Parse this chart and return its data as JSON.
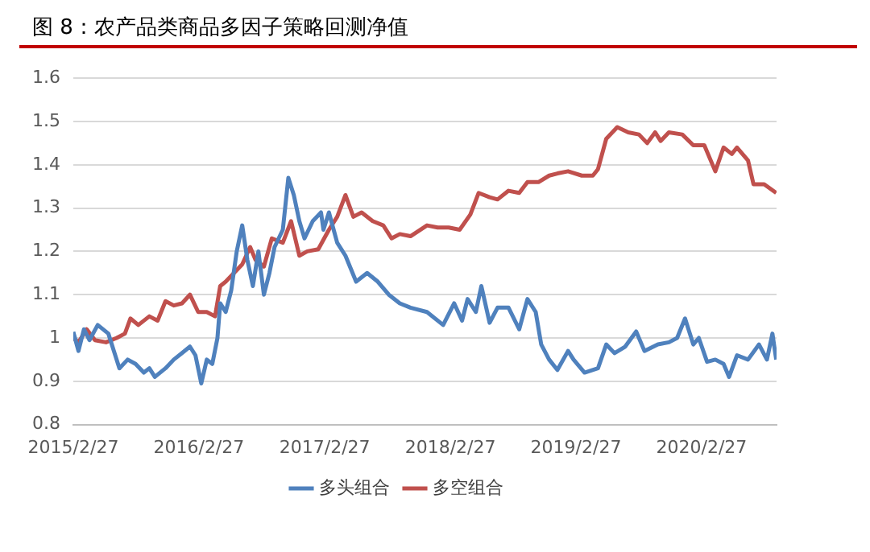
{
  "chart_data": {
    "type": "line",
    "title": "图 8：农产品类商品多因子策略回测净值",
    "xlim": [
      "2015-02-27",
      "2020-10-02"
    ],
    "xticks": [
      {
        "value": "2015-02-27",
        "label": "2015/2/27"
      },
      {
        "value": "2016-02-27",
        "label": "2016/2/27"
      },
      {
        "value": "2017-02-27",
        "label": "2017/2/27"
      },
      {
        "value": "2018-02-27",
        "label": "2018/2/27"
      },
      {
        "value": "2019-02-27",
        "label": "2019/2/27"
      },
      {
        "value": "2020-02-27",
        "label": "2020/2/27"
      }
    ],
    "ylim": [
      0.8,
      1.6
    ],
    "yticks": [
      0.8,
      0.9,
      1,
      1.1,
      1.2,
      1.3,
      1.4,
      1.5,
      1.6
    ],
    "grid": "y",
    "legend": "bottom",
    "marker": "none",
    "line_style": "solid",
    "series": [
      {
        "name": "多头组合",
        "color": "#4f81bd",
        "x": [
          "2015-02-27",
          "2015-03-14",
          "2015-03-30",
          "2015-04-15",
          "2015-05-09",
          "2015-06-09",
          "2015-06-25",
          "2015-07-11",
          "2015-08-04",
          "2015-08-27",
          "2015-09-20",
          "2015-10-06",
          "2015-10-22",
          "2015-11-22",
          "2015-12-16",
          "2016-01-09",
          "2016-02-01",
          "2016-02-17",
          "2016-03-05",
          "2016-03-21",
          "2016-04-06",
          "2016-04-21",
          "2016-04-29",
          "2016-05-15",
          "2016-05-31",
          "2016-06-16",
          "2016-07-02",
          "2016-07-17",
          "2016-08-02",
          "2016-08-18",
          "2016-09-03",
          "2016-09-19",
          "2016-10-04",
          "2016-10-28",
          "2016-11-13",
          "2016-11-29",
          "2016-12-15",
          "2016-12-30",
          "2017-01-23",
          "2017-02-16",
          "2017-02-23",
          "2017-03-11",
          "2017-04-04",
          "2017-04-28",
          "2017-05-29",
          "2017-06-30",
          "2017-07-31",
          "2017-09-01",
          "2017-10-03",
          "2017-11-03",
          "2017-12-21",
          "2018-02-06",
          "2018-03-10",
          "2018-04-02",
          "2018-04-18",
          "2018-05-12",
          "2018-05-28",
          "2018-06-21",
          "2018-07-14",
          "2018-08-15",
          "2018-09-15",
          "2018-10-09",
          "2018-11-02",
          "2018-11-18",
          "2018-12-11",
          "2019-01-04",
          "2019-02-04",
          "2019-02-20",
          "2019-03-24",
          "2019-05-02",
          "2019-05-26",
          "2019-06-19",
          "2019-07-20",
          "2019-08-21",
          "2019-09-14",
          "2019-10-23",
          "2019-11-24",
          "2019-12-18",
          "2020-01-10",
          "2020-02-03",
          "2020-02-19",
          "2020-03-14",
          "2020-04-07",
          "2020-05-01",
          "2020-05-17",
          "2020-06-09",
          "2020-07-11",
          "2020-08-12",
          "2020-09-04",
          "2020-09-20",
          "2020-10-01"
        ],
        "values": [
          1.014,
          0.97,
          1.02,
          0.995,
          1.03,
          1.01,
          0.97,
          0.93,
          0.95,
          0.94,
          0.92,
          0.93,
          0.91,
          0.93,
          0.95,
          0.965,
          0.98,
          0.96,
          0.895,
          0.95,
          0.94,
          1.0,
          1.08,
          1.06,
          1.11,
          1.2,
          1.26,
          1.18,
          1.12,
          1.2,
          1.1,
          1.15,
          1.21,
          1.25,
          1.37,
          1.33,
          1.27,
          1.23,
          1.27,
          1.29,
          1.25,
          1.29,
          1.22,
          1.19,
          1.13,
          1.15,
          1.13,
          1.1,
          1.08,
          1.07,
          1.06,
          1.03,
          1.08,
          1.04,
          1.09,
          1.06,
          1.12,
          1.035,
          1.07,
          1.07,
          1.02,
          1.09,
          1.06,
          0.985,
          0.95,
          0.926,
          0.97,
          0.95,
          0.92,
          0.93,
          0.985,
          0.965,
          0.98,
          1.015,
          0.97,
          0.985,
          0.99,
          1.0,
          1.045,
          0.985,
          1.0,
          0.945,
          0.95,
          0.94,
          0.91,
          0.96,
          0.95,
          0.985,
          0.95,
          1.01,
          0.95
        ]
      },
      {
        "name": "多空组合",
        "color": "#c0504d",
        "x": [
          "2015-02-27",
          "2015-03-14",
          "2015-04-07",
          "2015-05-01",
          "2015-06-02",
          "2015-07-03",
          "2015-07-27",
          "2015-08-12",
          "2015-09-04",
          "2015-10-06",
          "2015-10-30",
          "2015-11-22",
          "2015-12-16",
          "2016-01-09",
          "2016-02-01",
          "2016-02-25",
          "2016-03-21",
          "2016-04-14",
          "2016-04-29",
          "2016-05-15",
          "2016-06-08",
          "2016-07-02",
          "2016-07-25",
          "2016-08-10",
          "2016-09-03",
          "2016-09-26",
          "2016-10-28",
          "2016-11-21",
          "2016-12-15",
          "2017-01-07",
          "2017-02-08",
          "2017-03-11",
          "2017-04-04",
          "2017-04-28",
          "2017-05-21",
          "2017-06-14",
          "2017-07-16",
          "2017-08-16",
          "2017-09-09",
          "2017-10-03",
          "2017-11-03",
          "2017-12-21",
          "2018-01-21",
          "2018-02-22",
          "2018-03-26",
          "2018-04-26",
          "2018-05-20",
          "2018-06-21",
          "2018-07-14",
          "2018-08-15",
          "2018-09-15",
          "2018-10-09",
          "2018-11-10",
          "2018-12-11",
          "2019-01-04",
          "2019-02-04",
          "2019-03-16",
          "2019-04-17",
          "2019-05-02",
          "2019-05-26",
          "2019-06-27",
          "2019-07-29",
          "2019-08-29",
          "2019-09-22",
          "2019-10-15",
          "2019-10-31",
          "2019-11-24",
          "2020-01-02",
          "2020-02-03",
          "2020-03-06",
          "2020-04-07",
          "2020-05-01",
          "2020-05-25",
          "2020-06-09",
          "2020-07-11",
          "2020-07-27",
          "2020-08-27",
          "2020-10-01"
        ],
        "values": [
          1.0,
          0.99,
          1.02,
          0.995,
          0.99,
          1.0,
          1.01,
          1.045,
          1.03,
          1.05,
          1.04,
          1.085,
          1.075,
          1.08,
          1.1,
          1.06,
          1.06,
          1.05,
          1.12,
          1.13,
          1.15,
          1.17,
          1.21,
          1.18,
          1.165,
          1.23,
          1.22,
          1.27,
          1.19,
          1.2,
          1.205,
          1.25,
          1.28,
          1.33,
          1.28,
          1.29,
          1.27,
          1.26,
          1.23,
          1.24,
          1.235,
          1.26,
          1.255,
          1.255,
          1.25,
          1.285,
          1.335,
          1.325,
          1.32,
          1.34,
          1.335,
          1.36,
          1.36,
          1.375,
          1.38,
          1.385,
          1.375,
          1.375,
          1.39,
          1.46,
          1.487,
          1.475,
          1.47,
          1.45,
          1.475,
          1.455,
          1.475,
          1.47,
          1.445,
          1.445,
          1.385,
          1.44,
          1.425,
          1.44,
          1.41,
          1.355,
          1.355,
          1.335
        ]
      }
    ]
  }
}
